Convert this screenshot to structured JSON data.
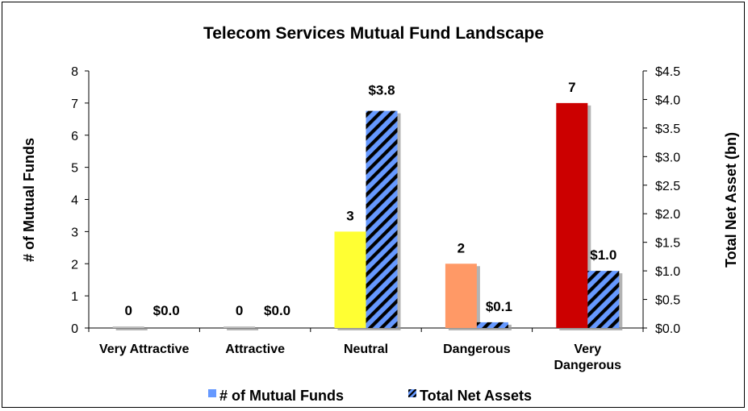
{
  "chart_data": {
    "type": "bar",
    "title": "Telecom Services Mutual Fund Landscape",
    "categories": [
      "Very Attractive",
      "Attractive",
      "Neutral",
      "Dangerous",
      "Very Dangerous"
    ],
    "category_lines": [
      [
        "Very Attractive"
      ],
      [
        "Attractive"
      ],
      [
        "Neutral"
      ],
      [
        "Dangerous"
      ],
      [
        "Very",
        "Dangerous"
      ]
    ],
    "series": [
      {
        "name": "# of Mutual Funds",
        "axis": "left",
        "values": [
          0,
          0,
          3,
          2,
          7
        ],
        "labels": [
          "0",
          "0",
          "3",
          "2",
          "7"
        ],
        "bar_colors": [
          "#c0c0c0",
          "#c0c0c0",
          "#ffff33",
          "#ff9966",
          "#cc0000"
        ],
        "legend_color": "#6699ff"
      },
      {
        "name": "Total Net Assets",
        "axis": "right",
        "values": [
          0.0,
          0.0,
          3.8,
          0.1,
          1.0
        ],
        "labels": [
          "$0.0",
          "$0.0",
          "$3.8",
          "$0.1",
          "$1.0"
        ],
        "pattern": "diagonal-stripes",
        "pattern_colors": [
          "#6699ff",
          "#000000"
        ]
      }
    ],
    "ylabel": "# of Mutual Funds",
    "y2label": "Total Net Asset (bn)",
    "ylim": [
      0,
      8
    ],
    "y2lim": [
      0,
      4.5
    ],
    "yticks": [
      "0",
      "1",
      "2",
      "3",
      "4",
      "5",
      "6",
      "7",
      "8"
    ],
    "y2ticks": [
      "$0.0",
      "$0.5",
      "$1.0",
      "$1.5",
      "$2.0",
      "$2.5",
      "$3.0",
      "$3.5",
      "$4.0",
      "$4.5"
    ],
    "grid": false,
    "legend_position": "bottom"
  }
}
